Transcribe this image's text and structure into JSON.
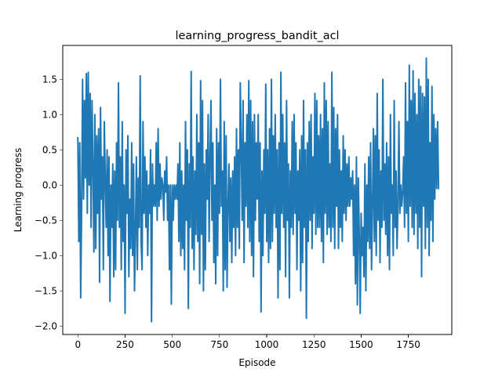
{
  "chart_data": {
    "type": "line",
    "title": "learning_progress_bandit_acl",
    "xlabel": "Episode",
    "ylabel": "Learning progress",
    "xlim": [
      -80,
      1980
    ],
    "ylim": [
      -2.12,
      1.98
    ],
    "grid": false,
    "x_ticks": [
      0,
      250,
      500,
      750,
      1000,
      1250,
      1500,
      1750
    ],
    "x_tick_labels": [
      "0",
      "250",
      "500",
      "750",
      "1000",
      "1250",
      "1500",
      "1750"
    ],
    "y_ticks": [
      -2.0,
      -1.5,
      -1.0,
      -0.5,
      0.0,
      0.5,
      1.0,
      1.5
    ],
    "y_tick_labels": [
      "−2.0",
      "−1.5",
      "−1.0",
      "−0.5",
      "0.0",
      "0.5",
      "1.0",
      "1.5"
    ],
    "series": [
      {
        "name": "learning progress",
        "color": "#1f77b4",
        "x_step": 5,
        "values": [
          0.68,
          -0.8,
          0.6,
          -1.6,
          -0.3,
          1.5,
          -0.2,
          1.2,
          0.1,
          1.58,
          -0.4,
          1.6,
          0.0,
          1.3,
          -0.6,
          1.2,
          0.3,
          -0.95,
          1.0,
          -0.9,
          0.7,
          -0.4,
          0.8,
          -1.38,
          1.1,
          -0.2,
          0.4,
          -1.2,
          0.9,
          0.1,
          -0.6,
          0.5,
          -1.0,
          0.4,
          -1.65,
          0.0,
          -0.6,
          0.3,
          -1.3,
          0.2,
          -1.2,
          0.6,
          -0.5,
          1.45,
          -0.6,
          0.4,
          -1.2,
          0.9,
          -0.8,
          0.0,
          -1.82,
          0.5,
          -0.4,
          0.7,
          -1.3,
          -0.2,
          -0.9,
          0.6,
          -1.0,
          0.3,
          -1.5,
          -0.7,
          0.4,
          -1.2,
          0.1,
          -0.6,
          1.55,
          -0.8,
          -1.2,
          0.9,
          -0.4,
          0.4,
          -0.6,
          0.2,
          -1.0,
          0.0,
          -0.4,
          0.5,
          -1.94,
          0.3,
          -0.3,
          0.0,
          -0.3,
          0.6,
          -0.5,
          0.8,
          -0.3,
          0.3,
          -0.2,
          0.1,
          0.0,
          -0.5,
          0.2,
          -0.1,
          0.4,
          -0.5,
          0.0,
          -1.2,
          0.0,
          -1.69,
          0.0,
          -0.5,
          0.0,
          -0.2,
          0.0,
          -0.2,
          0.3,
          -0.8,
          0.6,
          -1.0,
          0.2,
          -0.9,
          0.0,
          -1.2,
          0.9,
          -0.5,
          0.5,
          -1.75,
          0.3,
          -0.6,
          1.61,
          -0.9,
          0.4,
          -1.2,
          0.2,
          -0.7,
          1.0,
          -0.8,
          0.6,
          -1.4,
          1.48,
          -0.7,
          1.2,
          -1.5,
          0.3,
          -1.2,
          0.5,
          -0.2,
          1.0,
          -0.8,
          0.4,
          1.2,
          -0.5,
          0.6,
          -1.1,
          0.0,
          -1.4,
          0.8,
          -1.0,
          0.6,
          -0.4,
          1.5,
          -0.3,
          0.2,
          -1.5,
          0.9,
          -1.2,
          0.7,
          -1.45,
          -0.3,
          0.3,
          -0.8,
          0.1,
          -1.1,
          0.2,
          -0.6,
          0.4,
          -1.0,
          0.8,
          -0.6,
          0.5,
          -0.9,
          1.45,
          0.6,
          -0.5,
          1.2,
          -1.1,
          0.6,
          -0.3,
          1.0,
          -0.6,
          1.48,
          -0.8,
          1.2,
          -1.0,
          0.9,
          -1.3,
          1.0,
          -0.5,
          0.6,
          -0.2,
          1.0,
          -0.8,
          0.6,
          -1.8,
          0.2,
          -1.0,
          0.5,
          -0.4,
          1.43,
          -0.8,
          0.5,
          -1.1,
          0.8,
          -0.9,
          1.5,
          -0.8,
          0.7,
          -0.4,
          1.0,
          -0.6,
          0.5,
          -1.6,
          0.6,
          -1.2,
          1.6,
          -0.4,
          1.0,
          -0.6,
          0.6,
          -1.3,
          1.2,
          -0.5,
          0.3,
          -1.6,
          0.2,
          -0.6,
          0.9,
          -0.7,
          1.0,
          -0.4,
          0.6,
          -1.2,
          0.2,
          -0.5,
          0.5,
          -1.5,
          0.7,
          -1.1,
          1.2,
          -0.6,
          0.5,
          -1.89,
          0.6,
          -0.8,
          0.9,
          -0.5,
          1.0,
          -0.9,
          0.4,
          -0.4,
          1.3,
          -0.7,
          1.2,
          -0.6,
          0.7,
          -0.6,
          1.0,
          -0.8,
          0.8,
          -1.1,
          1.45,
          -0.4,
          1.2,
          -0.7,
          0.9,
          -0.6,
          0.3,
          -0.8,
          1.6,
          -0.6,
          1.1,
          -0.9,
          0.8,
          -0.3,
          1.0,
          -0.9,
          0.5,
          -0.6,
          0.2,
          -0.8,
          0.7,
          -0.4,
          0.5,
          -0.5,
          0.3,
          -0.3,
          0.4,
          -0.3,
          0.1,
          -0.2,
          0.2,
          -1.0,
          0.0,
          -1.4,
          0.4,
          -1.7,
          0.1,
          -0.7,
          -1.82,
          -0.4,
          -1.0,
          -0.6,
          -1.3,
          0.3,
          -1.5,
          0.0,
          -0.8,
          0.4,
          -0.9,
          0.6,
          -1.2,
          -0.3,
          0.8,
          -0.8,
          0.7,
          -1.0,
          1.3,
          -0.5,
          0.5,
          -1.1,
          0.2,
          -0.6,
          1.5,
          -0.5,
          0.3,
          -0.7,
          0.6,
          -1.0,
          0.4,
          -1.2,
          1.0,
          -0.4,
          0.0,
          -1.0,
          1.2,
          -0.6,
          0.2,
          -0.9,
          -0.3,
          0.9,
          -0.4,
          0.0,
          -0.3,
          -0.1,
          0.4,
          -0.6,
          1.45,
          -0.4,
          0.9,
          -0.8,
          1.7,
          -0.3,
          1.2,
          -0.6,
          1.62,
          -0.7,
          1.3,
          -0.4,
          1.0,
          -0.9,
          1.5,
          -0.6,
          1.4,
          -1.3,
          1.3,
          -0.3,
          1.25,
          -0.9,
          1.8,
          -0.6,
          1.5,
          -1.0,
          0.6,
          -0.5,
          1.4,
          -0.8,
          1.0,
          -0.2,
          0.8,
          -0.05,
          0.9,
          -0.06
        ]
      }
    ]
  }
}
